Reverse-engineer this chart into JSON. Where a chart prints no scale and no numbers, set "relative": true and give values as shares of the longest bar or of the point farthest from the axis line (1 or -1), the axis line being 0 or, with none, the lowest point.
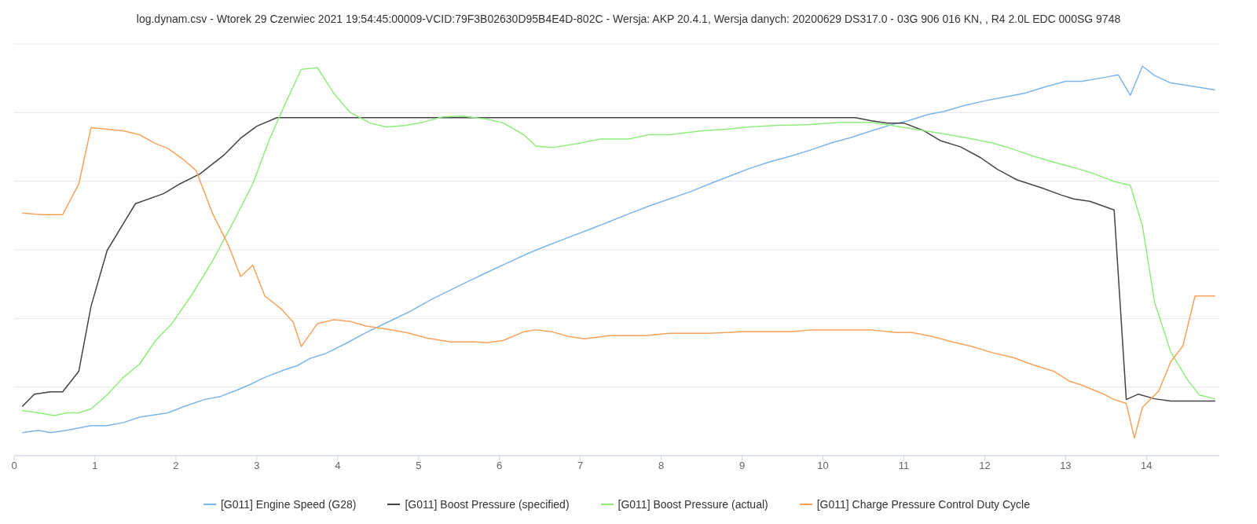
{
  "chart_data": {
    "type": "line",
    "title": "log.dynam.csv - Wtorek 29 Czerwiec 2021 19:54:45:00009-VCID:79F3B02630D95B4E4D-802C - Wersja: AKP 20.4.1, Wersja danych: 20200629 DS317.0 - 03G 906 016 KN, , R4 2.0L EDC 000SG 9748",
    "relative": true,
    "xlim": [
      0,
      14.9
    ],
    "xticks": [
      0,
      1,
      2,
      3,
      4,
      5,
      6,
      7,
      8,
      9,
      10,
      11,
      12,
      13,
      14
    ],
    "grid": "y",
    "legend": "bottom",
    "marker": "none",
    "line_style": "solid",
    "series": [
      {
        "name": "[G011] Engine Speed (G28)",
        "color": "#7cb5ec",
        "x": [
          0.1,
          0.3,
          0.45,
          0.65,
          0.95,
          1.15,
          1.35,
          1.55,
          1.9,
          2.1,
          2.35,
          2.55,
          2.75,
          2.9,
          3.1,
          3.35,
          3.5,
          3.65,
          3.85,
          4.1,
          4.35,
          4.6,
          4.9,
          5.15,
          5.4,
          5.6,
          5.85,
          6.1,
          6.35,
          6.6,
          6.85,
          7.1,
          7.35,
          7.6,
          7.85,
          8.1,
          8.35,
          8.6,
          8.9,
          9.1,
          9.35,
          9.6,
          9.85,
          10.1,
          10.35,
          10.6,
          10.85,
          11.05,
          11.3,
          11.5,
          11.75,
          12.0,
          12.2,
          12.5,
          12.75,
          13.0,
          13.2,
          13.45,
          13.65,
          13.8,
          13.95,
          14.1,
          14.3,
          14.55,
          14.85
        ],
        "values": [
          0.059,
          0.065,
          0.059,
          0.065,
          0.077,
          0.077,
          0.085,
          0.099,
          0.11,
          0.126,
          0.144,
          0.152,
          0.168,
          0.181,
          0.201,
          0.221,
          0.231,
          0.249,
          0.262,
          0.288,
          0.316,
          0.341,
          0.371,
          0.4,
          0.426,
          0.446,
          0.471,
          0.495,
          0.519,
          0.54,
          0.56,
          0.58,
          0.6,
          0.621,
          0.641,
          0.659,
          0.677,
          0.698,
          0.722,
          0.738,
          0.755,
          0.769,
          0.785,
          0.803,
          0.817,
          0.834,
          0.85,
          0.86,
          0.876,
          0.884,
          0.899,
          0.911,
          0.919,
          0.931,
          0.947,
          0.961,
          0.961,
          0.97,
          0.978,
          0.925,
          1,
          0.976,
          0.957,
          0.949,
          0.939
        ]
      },
      {
        "name": "[G011] Boost Pressure (specified)",
        "color": "#434348",
        "x": [
          0.1,
          0.25,
          0.45,
          0.6,
          0.8,
          0.95,
          1.15,
          1.35,
          1.5,
          1.85,
          2.05,
          2.3,
          2.6,
          2.8,
          3.0,
          3.25,
          3.5,
          10.4,
          10.6,
          10.8,
          11.0,
          11.25,
          11.45,
          11.7,
          11.95,
          12.15,
          12.4,
          12.7,
          12.95,
          13.1,
          13.3,
          13.6,
          13.75,
          13.9,
          14.1,
          14.3,
          14.85
        ],
        "values": [
          0.126,
          0.158,
          0.164,
          0.164,
          0.217,
          0.383,
          0.527,
          0.596,
          0.647,
          0.673,
          0.698,
          0.724,
          0.773,
          0.815,
          0.846,
          0.868,
          0.868,
          0.868,
          0.86,
          0.854,
          0.854,
          0.834,
          0.809,
          0.793,
          0.765,
          0.736,
          0.708,
          0.688,
          0.669,
          0.659,
          0.653,
          0.631,
          0.144,
          0.158,
          0.146,
          0.14,
          0.14
        ]
      },
      {
        "name": "[G011] Boost Pressure (actual)",
        "color": "#90ed7d",
        "x": [
          0.1,
          0.3,
          0.5,
          0.65,
          0.8,
          0.95,
          1.15,
          1.35,
          1.55,
          1.75,
          1.95,
          2.2,
          2.45,
          2.7,
          2.95,
          3.15,
          3.35,
          3.55,
          3.75,
          3.95,
          4.15,
          4.4,
          4.6,
          4.85,
          5.05,
          5.3,
          5.55,
          5.85,
          6.05,
          6.3,
          6.45,
          6.65,
          6.95,
          7.25,
          7.6,
          7.85,
          8.1,
          8.5,
          8.8,
          9.1,
          9.45,
          9.85,
          10.2,
          10.6,
          10.9,
          11.2,
          11.5,
          11.8,
          12.1,
          12.35,
          12.6,
          12.9,
          13.1,
          13.35,
          13.6,
          13.8,
          13.95,
          14.1,
          14.3,
          14.5,
          14.65,
          14.85
        ],
        "values": [
          0.116,
          0.11,
          0.103,
          0.11,
          0.11,
          0.12,
          0.156,
          0.201,
          0.235,
          0.296,
          0.339,
          0.414,
          0.499,
          0.596,
          0.698,
          0.809,
          0.903,
          0.992,
          0.996,
          0.931,
          0.882,
          0.854,
          0.844,
          0.848,
          0.856,
          0.87,
          0.872,
          0.864,
          0.854,
          0.824,
          0.795,
          0.791,
          0.801,
          0.813,
          0.813,
          0.824,
          0.824,
          0.834,
          0.838,
          0.844,
          0.848,
          0.85,
          0.856,
          0.856,
          0.846,
          0.836,
          0.826,
          0.815,
          0.803,
          0.787,
          0.769,
          0.751,
          0.74,
          0.724,
          0.704,
          0.694,
          0.59,
          0.394,
          0.266,
          0.197,
          0.156,
          0.146
        ]
      },
      {
        "name": "[G011] Charge Pressure Control Duty Cycle",
        "color": "#f7a35c",
        "x": [
          0.1,
          0.35,
          0.6,
          0.8,
          0.95,
          1.15,
          1.35,
          1.55,
          1.75,
          1.9,
          2.1,
          2.25,
          2.45,
          2.65,
          2.8,
          2.95,
          3.1,
          3.3,
          3.45,
          3.55,
          3.75,
          3.95,
          4.15,
          4.35,
          4.55,
          4.85,
          5.1,
          5.4,
          5.7,
          5.85,
          6.05,
          6.3,
          6.45,
          6.65,
          6.85,
          7.05,
          7.35,
          7.8,
          8.1,
          8.6,
          9.0,
          9.6,
          9.85,
          10.2,
          10.6,
          10.9,
          11.1,
          11.35,
          11.6,
          11.85,
          12.1,
          12.35,
          12.6,
          12.85,
          13.05,
          13.2,
          13.45,
          13.6,
          13.75,
          13.85,
          13.95,
          14.15,
          14.3,
          14.45,
          14.6,
          14.85
        ],
        "values": [
          0.623,
          0.619,
          0.619,
          0.698,
          0.842,
          0.838,
          0.834,
          0.824,
          0.801,
          0.789,
          0.759,
          0.732,
          0.623,
          0.54,
          0.46,
          0.489,
          0.41,
          0.377,
          0.343,
          0.28,
          0.339,
          0.349,
          0.345,
          0.333,
          0.327,
          0.316,
          0.302,
          0.292,
          0.292,
          0.29,
          0.296,
          0.318,
          0.323,
          0.318,
          0.306,
          0.3,
          0.308,
          0.308,
          0.314,
          0.314,
          0.318,
          0.318,
          0.323,
          0.323,
          0.323,
          0.316,
          0.316,
          0.306,
          0.292,
          0.28,
          0.264,
          0.252,
          0.233,
          0.217,
          0.191,
          0.181,
          0.16,
          0.144,
          0.134,
          0.045,
          0.124,
          0.166,
          0.241,
          0.282,
          0.41,
          0.41
        ]
      }
    ]
  }
}
